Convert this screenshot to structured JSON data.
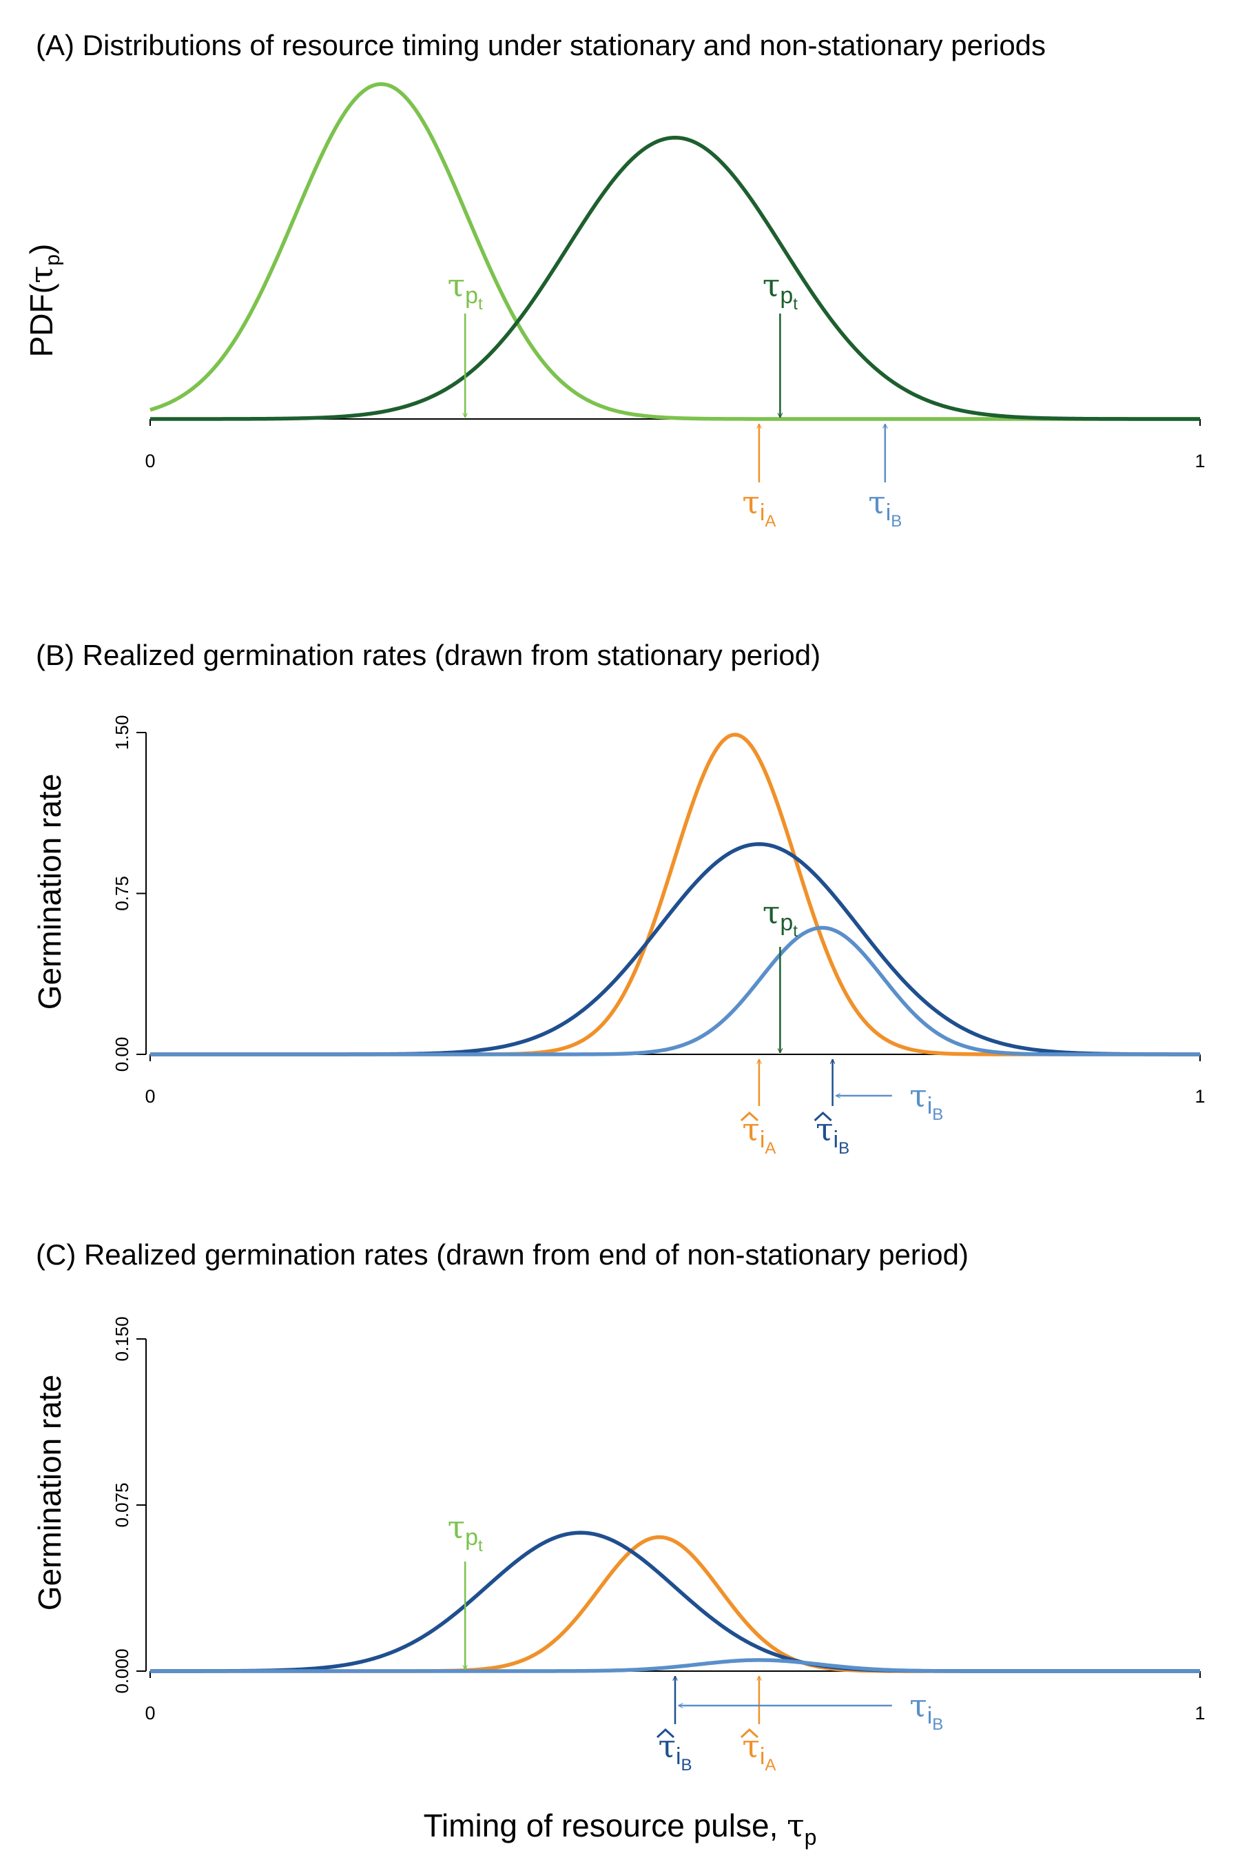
{
  "xlabel": {
    "main": "Timing of resource pulse, ",
    "tau": "τ",
    "sub": "p"
  },
  "colors": {
    "stationary": "#7cc24e",
    "nonstationary": "#1d5f2e",
    "speciesA": "#f0912a",
    "speciesB_hat": "#1f4f8f",
    "speciesB": "#5a8fca",
    "axis": "#000000"
  },
  "chart_data": [
    {
      "panel": "A",
      "type": "line",
      "title": "(A) Distributions of resource timing under stationary and non-stationary periods",
      "ylabel": {
        "main": "PDF(",
        "tau": "τ",
        "sub": "p",
        "close": ")"
      },
      "xlim": [
        0,
        1
      ],
      "x_ticks": [
        "0",
        "1"
      ],
      "y_ticks": [],
      "series": [
        {
          "color_key": "stationary",
          "curve": {
            "mean": 0.22,
            "sd": 0.082,
            "peak": 1.0
          }
        },
        {
          "color_key": "nonstationary",
          "curve": {
            "mean": 0.5,
            "sd": 0.103,
            "peak": 0.84
          }
        }
      ],
      "ylim": [
        0,
        1.0
      ],
      "markers": [
        {
          "id": "tau-pt-stationary",
          "x": 0.3,
          "direction": "down",
          "color_key": "stationary",
          "symbol": "τ",
          "sub": "p",
          "subsub": "t",
          "hat": false
        },
        {
          "id": "tau-pt-nonstationary",
          "x": 0.6,
          "direction": "down",
          "color_key": "nonstationary",
          "symbol": "τ",
          "sub": "p",
          "subsub": "t",
          "hat": false
        },
        {
          "id": "tau-iA",
          "x": 0.58,
          "direction": "up",
          "color_key": "speciesA",
          "symbol": "τ",
          "sub": "i",
          "subsub": "A",
          "hat": false
        },
        {
          "id": "tau-iB",
          "x": 0.7,
          "direction": "up",
          "color_key": "speciesB",
          "symbol": "τ",
          "sub": "i",
          "subsub": "B",
          "hat": false
        }
      ]
    },
    {
      "panel": "B",
      "type": "line",
      "title": "(B) Realized germination rates (drawn from stationary period)",
      "ylabel": {
        "main": "Germination rate"
      },
      "xlim": [
        0,
        1
      ],
      "ylim": [
        0,
        1.5
      ],
      "x_ticks": [
        "0",
        "1"
      ],
      "y_ticks": [
        {
          "value": 0,
          "label": "0.00"
        },
        {
          "value": 0.75,
          "label": "0.75"
        },
        {
          "value": 1.5,
          "label": "1.50"
        }
      ],
      "series": [
        {
          "color_key": "speciesA",
          "curve": {
            "mean": 0.557,
            "sd": 0.058,
            "peak": 1.49
          }
        },
        {
          "color_key": "speciesB_hat",
          "curve": {
            "mean": 0.58,
            "sd": 0.095,
            "peak": 0.98
          }
        },
        {
          "color_key": "speciesB",
          "curve": {
            "mean": 0.64,
            "sd": 0.058,
            "peak": 0.59
          }
        }
      ],
      "markers": [
        {
          "id": "tau-pt",
          "x": 0.6,
          "direction": "down",
          "color_key": "nonstationary",
          "symbol": "τ",
          "sub": "p",
          "subsub": "t",
          "hat": false
        },
        {
          "id": "tau-hat-iA",
          "x": 0.58,
          "direction": "up",
          "color_key": "speciesA",
          "symbol": "τ",
          "sub": "i",
          "subsub": "A",
          "hat": true
        },
        {
          "id": "tau-hat-iB",
          "x": 0.65,
          "direction": "up",
          "color_key": "speciesB_hat",
          "symbol": "τ",
          "sub": "i",
          "subsub": "B",
          "hat": true
        }
      ],
      "shift_arrow": {
        "from": 0.7,
        "to": 0.653,
        "color_key": "speciesB",
        "symbol": "τ",
        "sub": "i",
        "subsub": "B"
      }
    },
    {
      "panel": "C",
      "type": "line",
      "title": "(C) Realized germination rates (drawn from end of non-stationary period)",
      "ylabel": {
        "main": "Germination rate"
      },
      "xlim": [
        0,
        1
      ],
      "ylim": [
        0,
        0.15
      ],
      "x_ticks": [
        "0",
        "1"
      ],
      "y_ticks": [
        {
          "value": 0,
          "label": "0.000"
        },
        {
          "value": 0.075,
          "label": "0.075"
        },
        {
          "value": 0.15,
          "label": "0.150"
        }
      ],
      "series": [
        {
          "color_key": "speciesA",
          "curve": {
            "mean": 0.485,
            "sd": 0.058,
            "peak": 0.0605
          }
        },
        {
          "color_key": "speciesB_hat",
          "curve": {
            "mean": 0.41,
            "sd": 0.09,
            "peak": 0.0625
          }
        },
        {
          "color_key": "speciesB",
          "curve": {
            "mean": 0.58,
            "sd": 0.058,
            "peak": 0.005
          }
        }
      ],
      "markers": [
        {
          "id": "tau-pt",
          "x": 0.3,
          "direction": "down",
          "color_key": "stationary",
          "symbol": "τ",
          "sub": "p",
          "subsub": "t",
          "hat": false
        },
        {
          "id": "tau-hat-iB",
          "x": 0.5,
          "direction": "up",
          "color_key": "speciesB_hat",
          "symbol": "τ",
          "sub": "i",
          "subsub": "B",
          "hat": true
        },
        {
          "id": "tau-hat-iA",
          "x": 0.58,
          "direction": "up",
          "color_key": "speciesA",
          "symbol": "τ",
          "sub": "i",
          "subsub": "A",
          "hat": true
        }
      ],
      "shift_arrow": {
        "from": 0.7,
        "to": 0.503,
        "color_key": "speciesB",
        "symbol": "τ",
        "sub": "i",
        "subsub": "B"
      }
    }
  ]
}
